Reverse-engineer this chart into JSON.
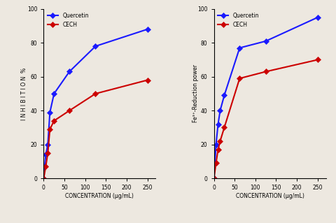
{
  "left_panel": {
    "xlabel": "CONCENTRATION (μg/mL)",
    "ylabel": "I N H I B I T I O N  %",
    "xlim": [
      0,
      270
    ],
    "ylim": [
      0,
      100
    ],
    "xticks": [
      0,
      50,
      100,
      150,
      200,
      250
    ],
    "yticks": [
      0,
      20,
      40,
      60,
      80,
      100
    ],
    "cech_x": [
      0,
      5,
      10,
      15,
      25,
      62,
      125,
      250
    ],
    "cech_y": [
      0,
      7,
      15,
      29,
      34,
      40,
      50,
      58
    ],
    "quercetin_x": [
      0,
      5,
      10,
      15,
      25,
      62,
      125,
      250
    ],
    "quercetin_y": [
      0,
      14,
      20,
      39,
      50,
      63,
      78,
      88
    ]
  },
  "right_panel": {
    "xlabel": "CONCENTRATION (μg/mL)",
    "ylabel": "Fe³⁺-Reduction power",
    "xlim": [
      0,
      270
    ],
    "ylim": [
      0,
      100
    ],
    "xticks": [
      0,
      50,
      100,
      150,
      200,
      250
    ],
    "yticks": [
      0,
      20,
      40,
      60,
      80,
      100
    ],
    "cech_x": [
      0,
      5,
      10,
      15,
      25,
      62,
      125,
      250
    ],
    "cech_y": [
      0,
      9,
      17,
      22,
      30,
      59,
      63,
      70
    ],
    "quercetin_x": [
      0,
      5,
      10,
      15,
      25,
      62,
      125,
      250
    ],
    "quercetin_y": [
      0,
      20,
      32,
      40,
      49,
      77,
      81,
      95
    ]
  },
  "cech_color": "#cc0000",
  "quercetin_color": "#1a1aff",
  "marker": "D",
  "marker_size": 4,
  "line_width": 1.5,
  "background_color": "#ede8e0",
  "legend_cech": "CECH",
  "legend_quercetin": "Quercetin"
}
